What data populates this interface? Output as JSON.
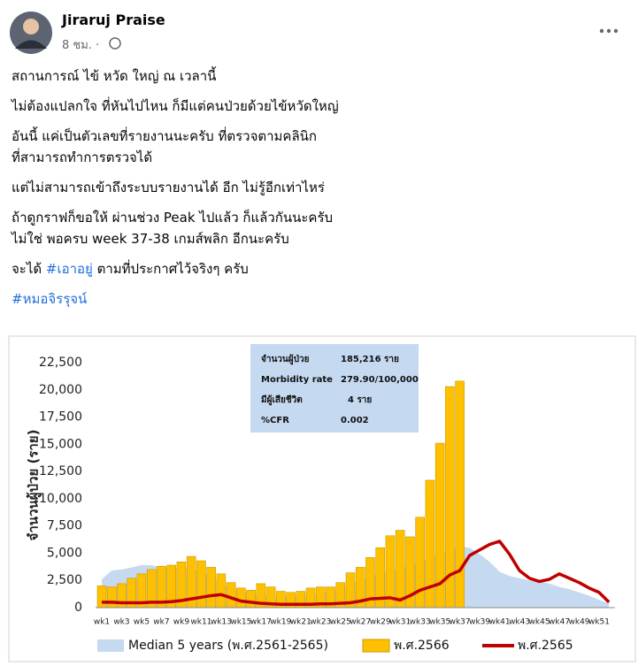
{
  "post": {
    "author": "Jiraruj Praise",
    "time": "8 ชม. ·",
    "paragraphs": [
      [
        "สถานการณ์ ไข้ หวัด ใหญ่  ณ เวลานี้"
      ],
      [
        "ไม่ต้องแปลกใจ ที่หันไปไหน ก็มีแต่คนป่วยด้วยไข้หวัดใหญ่"
      ],
      [
        "อันนี้ แค่เป็นตัวเลขที่รายงานนะครับ ที่ตรวจตามคลินิก",
        "ที่สามารถทำการตรวจได้"
      ],
      [
        "แต่ไม่สามารถเข้าถึงระบบรายงานได้ อีก ไม่รู้อีกเท่าไหร่"
      ],
      [
        "ถ้าดูกราฟก็ขอให้ ผ่านช่วง Peak ไปแล้ว ก็แล้วกันนะครับ",
        "ไม่ใช่ พอครบ week 37-38 เกมส์พลิก อีกนะครับ"
      ]
    ],
    "closing": [
      "จะได้ ",
      "#เอาอยู่",
      "  ตามที่ประกาศไว้จริงๆ ครับ"
    ],
    "hashtag": "#หมอจิรรุจน์"
  },
  "chart_data": {
    "type": "bar",
    "y_label": "จำนวนผู้ป่วย (ราย)",
    "categories": [
      "wk1",
      null,
      "wk3",
      null,
      "wk5",
      null,
      "wk7",
      null,
      "wk9",
      null,
      "wk11",
      null,
      "wk13",
      null,
      "wk15",
      null,
      "wk17",
      null,
      "wk19",
      null,
      "wk21",
      null,
      "wk23",
      null,
      "wk25",
      null,
      "wk27",
      null,
      "wk29",
      null,
      "wk31",
      null,
      "wk33",
      null,
      "wk35",
      null,
      "wk37",
      null,
      "wk39",
      null,
      "wk41",
      null,
      "wk43",
      null,
      "wk45",
      null,
      "wk47",
      null,
      "wk49",
      null,
      "wk51",
      null
    ],
    "ylim": [
      0,
      22500
    ],
    "yticks": [
      0,
      {
        "value": 2500,
        "label": "2,500"
      },
      {
        "value": 5000,
        "label": "5,000"
      },
      {
        "value": 7500,
        "label": "7,500"
      },
      {
        "value": 10000,
        "label": "10,000"
      },
      {
        "value": 12500,
        "label": "12,500"
      },
      {
        "value": 15000,
        "label": "15,000"
      },
      {
        "value": 17500,
        "label": "17,500"
      },
      {
        "value": 20000,
        "label": "20,000"
      },
      {
        "value": 22500,
        "label": "22,500"
      }
    ],
    "grid": false,
    "series": [
      {
        "name": "Median 5 years (พ.ศ.2561-2565)",
        "type": "area",
        "color": "#c5d9f1",
        "values": [
          2600,
          3400,
          3500,
          3700,
          3900,
          3900,
          3700,
          3600,
          3700,
          3500,
          3300,
          2800,
          2200,
          1700,
          1500,
          1300,
          1200,
          1100,
          1000,
          1000,
          1100,
          1200,
          1400,
          1500,
          1800,
          2200,
          2500,
          2900,
          3100,
          3400,
          3600,
          3900,
          4200,
          4600,
          5000,
          5300,
          5600,
          5500,
          4900,
          4200,
          3300,
          2900,
          2700,
          2500,
          2400,
          2200,
          1900,
          1700,
          1400,
          1100,
          700,
          400
        ]
      },
      {
        "name": "พ.ศ.2566",
        "type": "bar",
        "color": "#ffc000",
        "values": [
          2000,
          1900,
          2200,
          2700,
          3100,
          3500,
          3800,
          3900,
          4200,
          4700,
          4300,
          3700,
          3100,
          2300,
          1800,
          1600,
          2200,
          1900,
          1500,
          1400,
          1500,
          1800,
          1900,
          1900,
          2300,
          3200,
          3700,
          4600,
          5500,
          6600,
          7100,
          6500,
          8300,
          11700,
          15100,
          20300,
          20800,
          null,
          null,
          null,
          null,
          null,
          null,
          null,
          null,
          null,
          null,
          null,
          null,
          null,
          null,
          null
        ]
      },
      {
        "name": "พ.ศ.2565",
        "type": "line",
        "color": "#c00000",
        "values": [
          500,
          500,
          450,
          450,
          450,
          500,
          500,
          550,
          650,
          800,
          950,
          1100,
          1200,
          900,
          600,
          500,
          400,
          350,
          300,
          300,
          300,
          300,
          350,
          350,
          400,
          450,
          600,
          800,
          850,
          900,
          700,
          1100,
          1600,
          1900,
          2200,
          3000,
          3400,
          4800,
          5300,
          5800,
          6100,
          4900,
          3400,
          2700,
          2400,
          2600,
          3100,
          2700,
          2300,
          1800,
          1400,
          500
        ]
      }
    ],
    "info_box": [
      [
        "จำนวนผู้ป่วย",
        "185,216 ราย"
      ],
      [
        "Morbidity rate",
        "279.90/100,000"
      ],
      [
        "มีผู้เสียชีวิต",
        "4 ราย"
      ],
      [
        "%CFR",
        "0.002"
      ]
    ]
  }
}
